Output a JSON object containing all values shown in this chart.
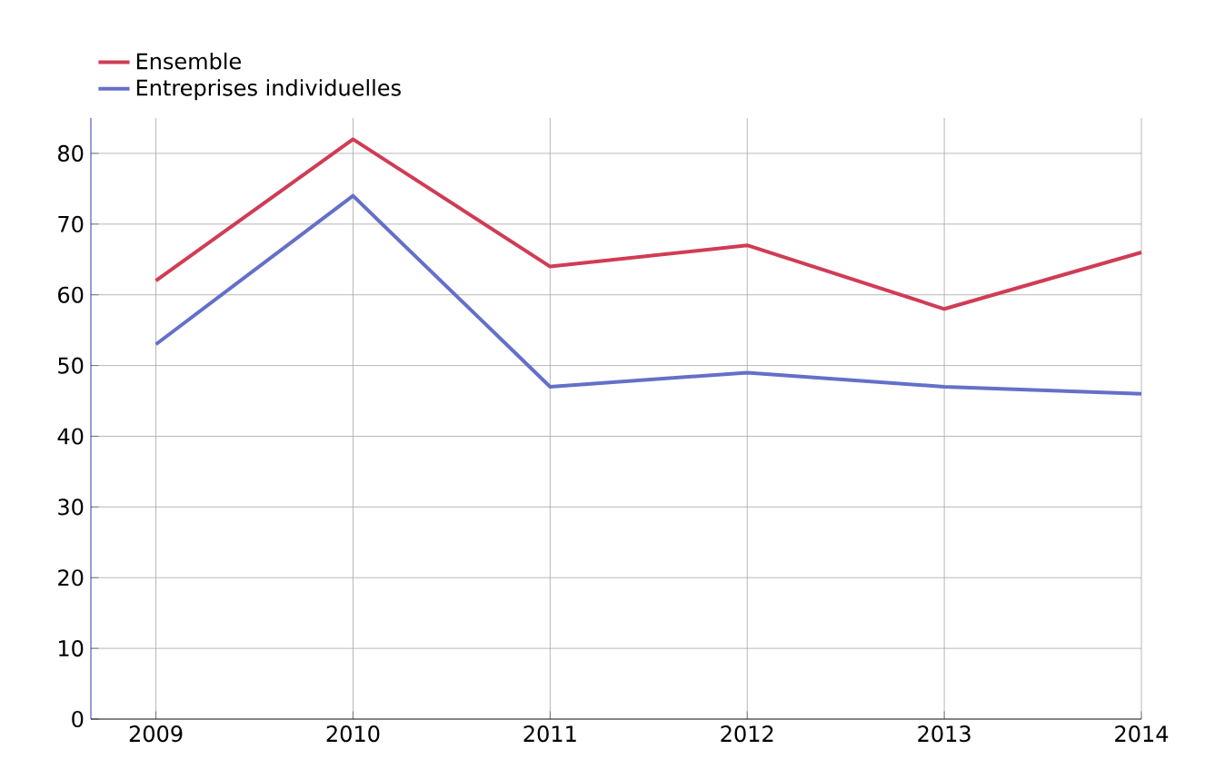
{
  "chart_data": {
    "type": "line",
    "categories": [
      "2009",
      "2010",
      "2011",
      "2012",
      "2013",
      "2014"
    ],
    "series": [
      {
        "name": "Ensemble",
        "color": "#d03c55",
        "values": [
          62,
          82,
          64,
          67,
          58,
          66
        ]
      },
      {
        "name": "Entreprises individuelles",
        "color": "#6470c8",
        "values": [
          53,
          74,
          47,
          49,
          47,
          46
        ]
      }
    ],
    "ylim": [
      0,
      85
    ],
    "yticks": [
      0,
      10,
      20,
      30,
      40,
      50,
      60,
      70,
      80
    ],
    "grid": true,
    "legend": "top left",
    "marker": "none",
    "line_style": "solid"
  }
}
